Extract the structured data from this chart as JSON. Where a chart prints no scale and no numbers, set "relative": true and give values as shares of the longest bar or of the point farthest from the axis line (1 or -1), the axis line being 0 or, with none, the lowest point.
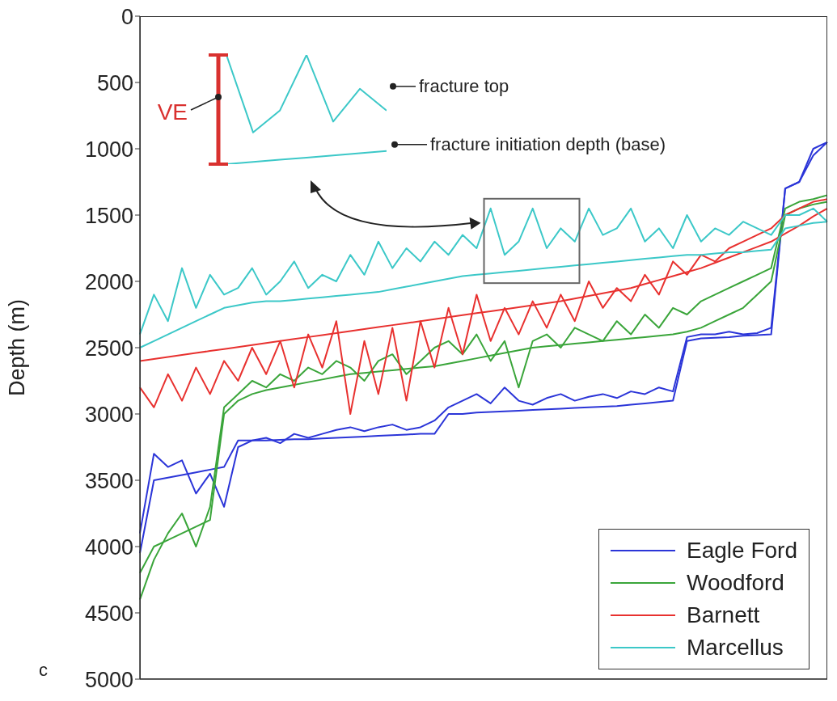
{
  "chart_data": [
    {
      "type": "line",
      "ylabel": "Depth (m)",
      "ylim": [
        5000,
        0
      ],
      "yticks": [
        0,
        500,
        1000,
        1500,
        2000,
        2500,
        3000,
        3500,
        4000,
        4500,
        5000
      ],
      "tick_labels": "y",
      "grid": false,
      "legend": "bottom right",
      "marker": "none",
      "line_style": "solid",
      "categories": [
        null,
        null,
        null,
        null,
        null,
        null,
        null,
        null,
        null,
        null,
        null,
        null,
        null,
        null,
        null,
        null,
        null,
        null,
        null,
        null,
        null,
        null,
        null,
        null,
        null,
        null,
        null,
        null,
        null,
        null,
        null,
        null,
        null,
        null,
        null,
        null,
        null,
        null,
        null,
        null,
        null,
        null,
        null,
        null,
        null,
        null,
        null,
        null,
        null,
        null
      ],
      "series": [
        {
          "name": "Eagle Ford",
          "color": "#2b35d8",
          "values": [
            3900,
            3300,
            3400,
            3350,
            3600,
            3450,
            3700,
            3250,
            3200,
            3180,
            3220,
            3150,
            3180,
            3150,
            3120,
            3100,
            3130,
            3100,
            3080,
            3120,
            3100,
            3050,
            2950,
            2900,
            2850,
            2920,
            2800,
            2900,
            2930,
            2880,
            2850,
            2900,
            2870,
            2850,
            2880,
            2830,
            2850,
            2800,
            2830,
            2420,
            2400,
            2400,
            2380,
            2400,
            2390,
            2350,
            1300,
            1250,
            1050,
            950
          ]
        },
        {
          "color": "#2b35d8",
          "values": [
            4050,
            3500,
            3480,
            3460,
            3440,
            3420,
            3400,
            3200,
            3200,
            3200,
            3195,
            3190,
            3190,
            3185,
            3180,
            3175,
            3170,
            3165,
            3160,
            3155,
            3150,
            3150,
            3000,
            3000,
            2990,
            2985,
            2980,
            2975,
            2970,
            2965,
            2960,
            2955,
            2950,
            2945,
            2940,
            2930,
            2920,
            2910,
            2900,
            2450,
            2430,
            2425,
            2420,
            2410,
            2405,
            2400,
            1300,
            1250,
            1000,
            950
          ]
        },
        {
          "name": "Woodford",
          "color": "#3aa53a",
          "values": [
            4400,
            4100,
            3900,
            3750,
            4000,
            3700,
            2950,
            2850,
            2750,
            2800,
            2700,
            2750,
            2650,
            2700,
            2600,
            2650,
            2750,
            2600,
            2550,
            2700,
            2600,
            2500,
            2450,
            2550,
            2400,
            2600,
            2450,
            2800,
            2450,
            2400,
            2500,
            2350,
            2400,
            2450,
            2300,
            2400,
            2250,
            2350,
            2200,
            2250,
            2150,
            2100,
            2050,
            2000,
            1950,
            1900,
            1450,
            1400,
            1380,
            1350
          ]
        },
        {
          "color": "#3aa53a",
          "values": [
            4200,
            4000,
            3950,
            3900,
            3850,
            3800,
            3000,
            2900,
            2850,
            2820,
            2800,
            2780,
            2760,
            2740,
            2720,
            2700,
            2690,
            2680,
            2670,
            2660,
            2650,
            2640,
            2620,
            2600,
            2580,
            2560,
            2540,
            2520,
            2500,
            2490,
            2480,
            2470,
            2460,
            2450,
            2440,
            2430,
            2420,
            2410,
            2400,
            2380,
            2350,
            2300,
            2250,
            2200,
            2100,
            2000,
            1500,
            1450,
            1420,
            1400
          ]
        },
        {
          "name": "Barnett",
          "color": "#e8312f",
          "values": [
            2800,
            2950,
            2700,
            2900,
            2650,
            2850,
            2600,
            2750,
            2500,
            2700,
            2450,
            2800,
            2400,
            2650,
            2300,
            3000,
            2450,
            2850,
            2350,
            2900,
            2300,
            2650,
            2200,
            2550,
            2100,
            2450,
            2200,
            2400,
            2150,
            2350,
            2100,
            2300,
            2000,
            2200,
            2050,
            2150,
            1950,
            2100,
            1850,
            1950,
            1800,
            1850,
            1750,
            1700,
            1650,
            1600,
            1500,
            1450,
            1400,
            1380
          ]
        },
        {
          "color": "#e8312f",
          "values": [
            2600,
            2585,
            2570,
            2555,
            2540,
            2525,
            2510,
            2495,
            2480,
            2465,
            2450,
            2435,
            2420,
            2405,
            2390,
            2375,
            2360,
            2345,
            2330,
            2315,
            2300,
            2285,
            2270,
            2255,
            2240,
            2225,
            2210,
            2195,
            2180,
            2165,
            2150,
            2130,
            2110,
            2090,
            2070,
            2050,
            2020,
            1990,
            1960,
            1930,
            1900,
            1860,
            1820,
            1780,
            1740,
            1700,
            1640,
            1580,
            1510,
            1450
          ]
        },
        {
          "name": "Marcellus",
          "color": "#3cc8c8",
          "values": [
            2400,
            2100,
            2300,
            1900,
            2200,
            1950,
            2100,
            2050,
            1900,
            2100,
            2000,
            1850,
            2050,
            1950,
            2000,
            1800,
            1950,
            1700,
            1900,
            1750,
            1850,
            1700,
            1800,
            1650,
            1750,
            1450,
            1800,
            1700,
            1450,
            1750,
            1600,
            1700,
            1450,
            1650,
            1600,
            1450,
            1700,
            1600,
            1750,
            1500,
            1700,
            1600,
            1650,
            1550,
            1600,
            1650,
            1500,
            1500,
            1450,
            1550
          ]
        },
        {
          "color": "#3cc8c8",
          "values": [
            2500,
            2450,
            2400,
            2350,
            2300,
            2250,
            2200,
            2180,
            2160,
            2150,
            2150,
            2140,
            2130,
            2120,
            2110,
            2100,
            2090,
            2080,
            2060,
            2040,
            2020,
            2000,
            1980,
            1960,
            1950,
            1940,
            1930,
            1920,
            1910,
            1900,
            1890,
            1880,
            1870,
            1860,
            1850,
            1840,
            1830,
            1820,
            1810,
            1800,
            1800,
            1790,
            1780,
            1780,
            1770,
            1760,
            1600,
            1580,
            1560,
            1550
          ]
        }
      ],
      "annotations": [
        "c"
      ]
    },
    {
      "type": "line",
      "relative": true,
      "tick_labels": false,
      "marker": "none",
      "line_style": "solid",
      "categories": [
        null,
        null,
        null,
        null,
        null,
        null,
        null
      ],
      "series": [
        {
          "color": "#3cc8c8",
          "values": [
            1,
            0.29,
            0.49,
            1,
            0.39,
            0.69,
            0.49
          ]
        },
        {
          "color": "#3cc8c8",
          "values": [
            0,
            0.02,
            0.04,
            0.06,
            0.08,
            0.1,
            0.12
          ]
        }
      ],
      "annotations": [
        "fracture top",
        "fracture initiation depth (base)",
        "VE"
      ]
    }
  ]
}
